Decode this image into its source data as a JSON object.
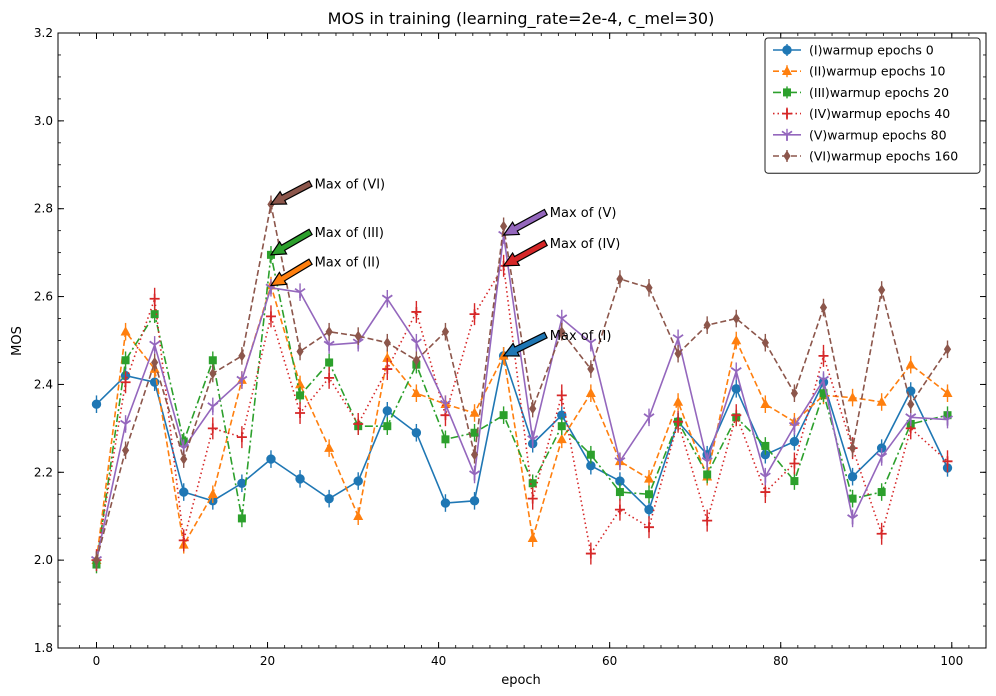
{
  "chart_data": {
    "type": "line",
    "title": "MOS in training (learning_rate=2e-4, c_mel=30)",
    "xlabel": "epoch",
    "ylabel": "MOS",
    "xlim": [
      -4.5,
      104
    ],
    "ylim": [
      1.8,
      3.2
    ],
    "xticks": [
      "0",
      "20",
      "40",
      "60",
      "80",
      "100"
    ],
    "yticks": [
      "1.8",
      "2.0",
      "2.2",
      "2.4",
      "2.6",
      "2.8",
      "3.0",
      "3.2"
    ],
    "grid": false,
    "legend_position": "top-right",
    "x": [
      0,
      3.4,
      6.8,
      10.2,
      13.6,
      17,
      20.4,
      23.8,
      27.2,
      30.6,
      34,
      37.4,
      40.8,
      44.2,
      47.6,
      51,
      54.4,
      57.8,
      61.2,
      64.6,
      68,
      71.4,
      74.8,
      78.2,
      81.6,
      85,
      88.4,
      91.8,
      95.2,
      99.5
    ],
    "series": [
      {
        "name": "(I)warmup epochs 0",
        "color": "#1f77b4",
        "linestyle": "solid",
        "marker": "circle",
        "y": [
          2.355,
          2.42,
          2.405,
          2.155,
          2.135,
          2.175,
          2.23,
          2.185,
          2.14,
          2.18,
          2.34,
          2.29,
          2.13,
          2.135,
          2.465,
          2.265,
          2.33,
          2.215,
          2.18,
          2.115,
          2.315,
          2.24,
          2.39,
          2.24,
          2.27,
          2.405,
          2.19,
          2.255,
          2.385,
          2.21
        ],
        "err": 0.02
      },
      {
        "name": "(II)warmup epochs 10",
        "color": "#ff7f0e",
        "linestyle": "dashed",
        "marker": "triangle",
        "y": [
          2.0,
          2.52,
          2.435,
          2.035,
          2.15,
          2.41,
          2.625,
          2.4,
          2.255,
          2.1,
          2.46,
          2.38,
          2.355,
          2.335,
          2.465,
          2.05,
          2.275,
          2.38,
          2.225,
          2.185,
          2.36,
          2.19,
          2.5,
          2.355,
          2.315,
          2.375,
          2.37,
          2.36,
          2.445,
          2.38
        ],
        "err": 0.02
      },
      {
        "name": "(III)warmup epochs 20",
        "color": "#2ca02c",
        "linestyle": "dashdot",
        "marker": "square",
        "y": [
          1.99,
          2.455,
          2.56,
          2.27,
          2.455,
          2.095,
          2.695,
          2.375,
          2.45,
          2.305,
          2.305,
          2.445,
          2.275,
          2.29,
          2.33,
          2.175,
          2.305,
          2.24,
          2.155,
          2.15,
          2.315,
          2.195,
          2.325,
          2.26,
          2.18,
          2.38,
          2.14,
          2.155,
          2.31,
          2.33
        ],
        "err": 0.02
      },
      {
        "name": "(IV)warmup epochs 40",
        "color": "#d62728",
        "linestyle": "dotted",
        "marker": "plus",
        "y": [
          2.0,
          2.405,
          2.595,
          2.045,
          2.3,
          2.28,
          2.555,
          2.335,
          2.415,
          2.31,
          2.435,
          2.565,
          2.33,
          2.56,
          2.67,
          2.14,
          2.375,
          2.015,
          2.115,
          2.075,
          2.315,
          2.09,
          2.33,
          2.155,
          2.22,
          2.465,
          2.255,
          2.06,
          2.3,
          2.225
        ],
        "err": 0.025
      },
      {
        "name": "(V)warmup epochs 80",
        "color": "#9467bd",
        "linestyle": "solid",
        "marker": "tri_down",
        "y": [
          2.0,
          2.31,
          2.49,
          2.255,
          2.35,
          2.41,
          2.62,
          2.61,
          2.49,
          2.495,
          2.595,
          2.495,
          2.355,
          2.195,
          2.74,
          2.275,
          2.55,
          2.495,
          2.225,
          2.325,
          2.505,
          2.225,
          2.43,
          2.19,
          2.305,
          2.41,
          2.095,
          2.235,
          2.325,
          2.32
        ],
        "err": 0.02
      },
      {
        "name": "(VI)warmup epochs 160",
        "color": "#8c564b",
        "linestyle": "dashed",
        "marker": "diamond",
        "y": [
          2.0,
          2.25,
          2.45,
          2.23,
          2.425,
          2.465,
          2.81,
          2.475,
          2.52,
          2.51,
          2.495,
          2.455,
          2.52,
          2.24,
          2.76,
          2.345,
          2.52,
          2.435,
          2.64,
          2.62,
          2.47,
          2.535,
          2.55,
          2.495,
          2.38,
          2.575,
          2.255,
          2.615,
          2.355,
          2.48
        ],
        "err": 0.02
      }
    ],
    "annotations": [
      {
        "text": "Max of (VI)",
        "series_index": 5,
        "point_index": 6,
        "text_xy": [
          25.5,
          2.855
        ]
      },
      {
        "text": "Max of (III)",
        "series_index": 2,
        "point_index": 6,
        "text_xy": [
          25.5,
          2.745
        ]
      },
      {
        "text": "Max of (II)",
        "series_index": 1,
        "point_index": 6,
        "text_xy": [
          25.5,
          2.677
        ]
      },
      {
        "text": "Max of (V)",
        "series_index": 4,
        "point_index": 14,
        "text_xy": [
          53,
          2.79
        ]
      },
      {
        "text": "Max of (IV)",
        "series_index": 3,
        "point_index": 14,
        "text_xy": [
          53,
          2.72
        ]
      },
      {
        "text": "Max of (I)",
        "series_index": 0,
        "point_index": 14,
        "text_xy": [
          53,
          2.51
        ]
      }
    ]
  }
}
